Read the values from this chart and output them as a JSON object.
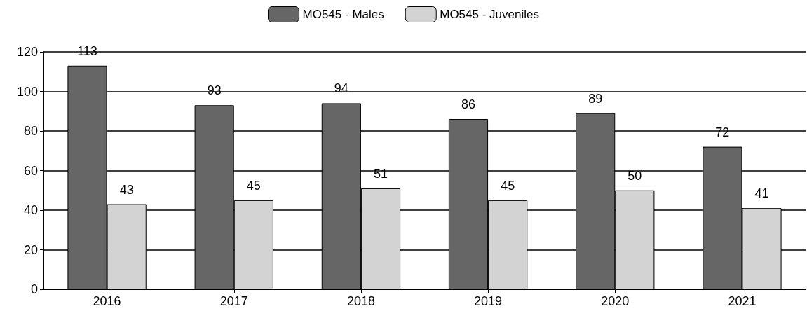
{
  "chart_data": {
    "type": "bar",
    "categories": [
      "2016",
      "2017",
      "2018",
      "2019",
      "2020",
      "2021"
    ],
    "series": [
      {
        "name": "MO545 - Males",
        "color": "#666666",
        "values": [
          113,
          93,
          94,
          86,
          89,
          72
        ]
      },
      {
        "name": "MO545 - Juveniles",
        "color": "#d3d3d3",
        "values": [
          43,
          45,
          51,
          45,
          50,
          41
        ]
      }
    ],
    "ylim": [
      0,
      120
    ],
    "yticks": [
      0,
      20,
      40,
      60,
      80,
      100,
      120
    ],
    "grid": "y",
    "legend": "top",
    "data_labels": true
  }
}
